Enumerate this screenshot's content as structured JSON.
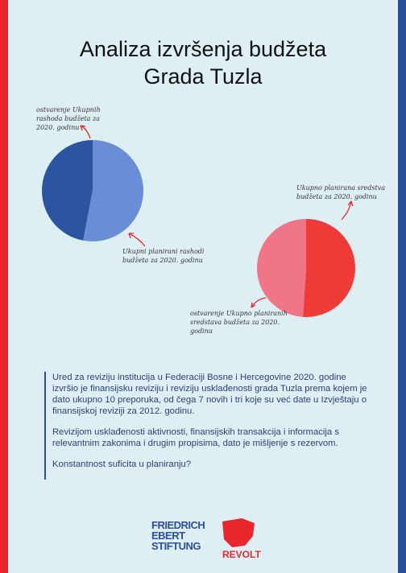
{
  "title": "Analiza izvršenja budžeta Grada Tuzla",
  "chart_data": [
    {
      "type": "pie",
      "categories": [
        "ostvarenje Ukupnih rashoda budžeta za 2020. godinu",
        "Ukupni planirani rashodi budžeta za 2020. godinu"
      ],
      "values": [
        47,
        53
      ],
      "colors": [
        "#2b55a0",
        "#6a8ed6"
      ]
    },
    {
      "type": "pie",
      "categories": [
        "ostvarenje Ukupno planiranih sredstava budžeta za 2020. godinu",
        "Ukupno planirana sredstva budžeta za 2020. godinu"
      ],
      "values": [
        49,
        51
      ],
      "colors": [
        "#f07587",
        "#ee3b38"
      ]
    }
  ],
  "paragraphs": [
    "Ured za reviziju institucija u Federaciji Bosne i Hercegovine 2020. godine izvršio je finansijsku reviziju i reviziju usklađenosti grada Tuzla prema kojem je dato ukupno 10 preporuka, od čega 7 novih i tri koje su već date u Izvještaju o finansijskoj reviziji za 2012. godinu.",
    "Revizijom usklađenosti aktivnosti, finansijskih transakcija i informacija s relevantnim zakonima i drugim propisima, dato je mišljenje s rezervom.",
    "Konstantnost suficita u planiranju?"
  ],
  "logos": [
    "FRIEDRICH EBERT STIFTUNG",
    "REVOLT"
  ]
}
